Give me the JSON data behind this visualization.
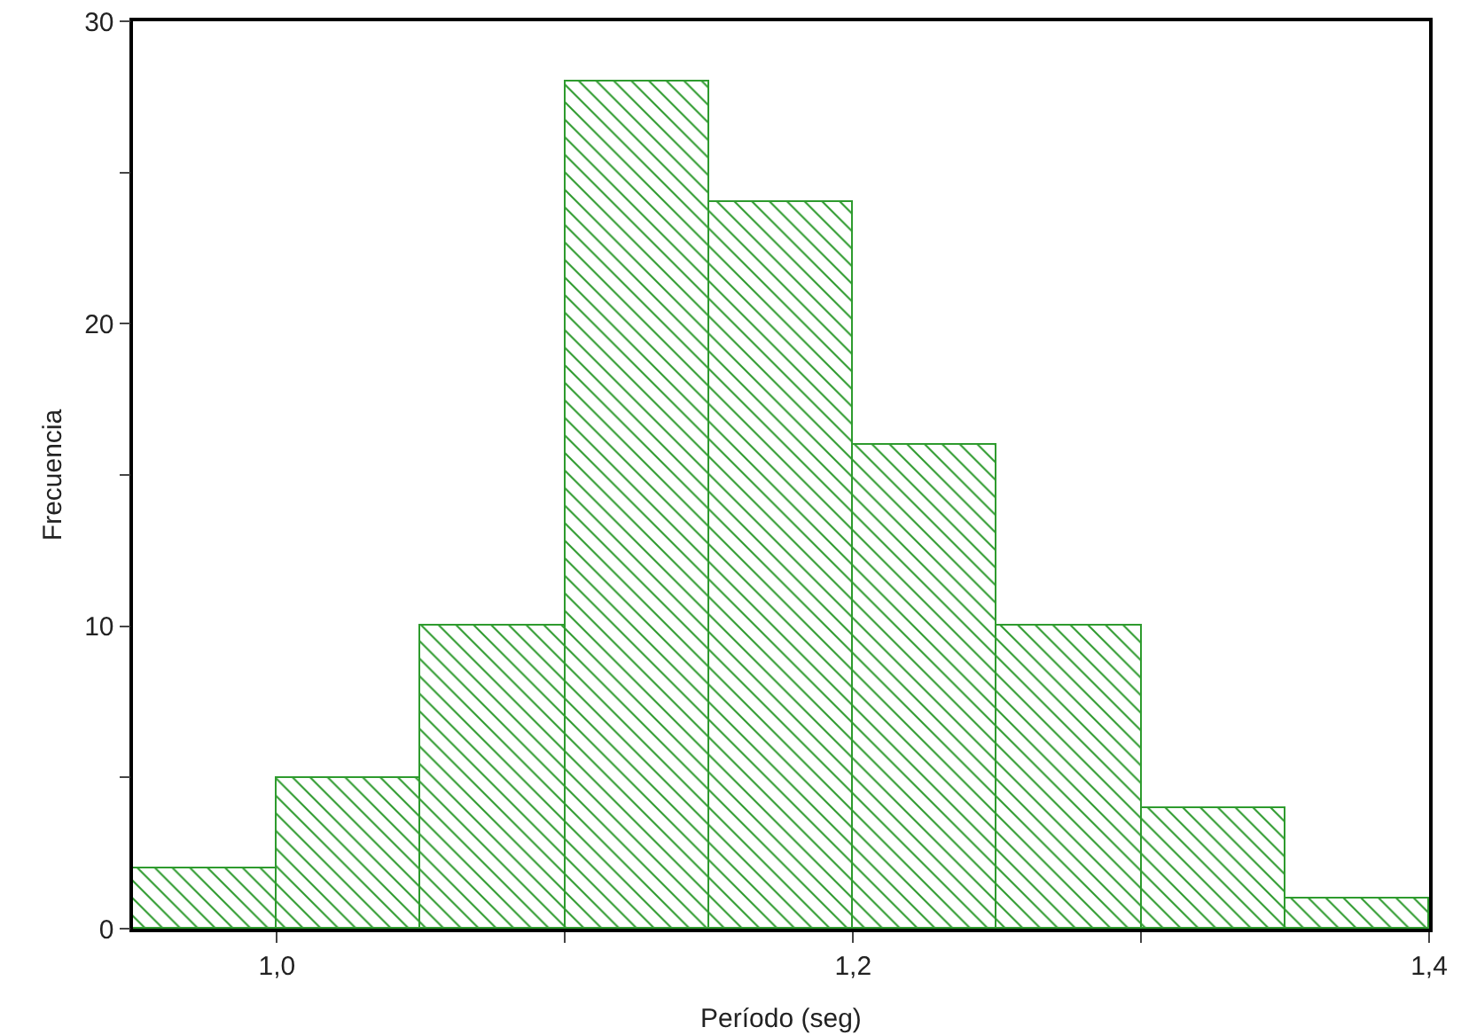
{
  "chart_data": {
    "type": "histogram",
    "xlabel": "Período (seg)",
    "ylabel": "Frecuencia",
    "bins": [
      0.95,
      1.0,
      1.05,
      1.1,
      1.15,
      1.2,
      1.25,
      1.3,
      1.35,
      1.4
    ],
    "values": [
      2,
      5,
      10,
      28,
      24,
      16,
      10,
      4,
      1
    ],
    "color": "#2e9b2e",
    "xlim": [
      0.95,
      1.4
    ],
    "xticks": [
      {
        "value": 1.0,
        "label": "1,0"
      },
      {
        "value": 1.1,
        "label": null
      },
      {
        "value": 1.2,
        "label": "1,2"
      },
      {
        "value": 1.3,
        "label": null
      },
      {
        "value": 1.4,
        "label": "1,4"
      }
    ],
    "ylim": [
      0,
      30
    ],
    "yticks": [
      0,
      {
        "value": 5,
        "label": null
      },
      10,
      {
        "value": 15,
        "label": null
      },
      20,
      {
        "value": 25,
        "label": null
      },
      30
    ],
    "grid": false,
    "legend": false
  }
}
